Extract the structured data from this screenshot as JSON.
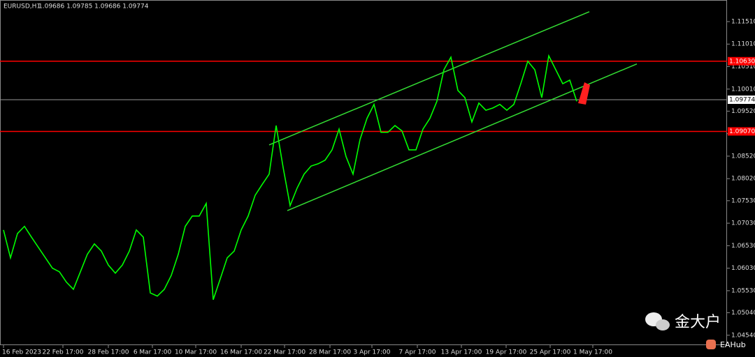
{
  "chart_data": {
    "type": "line",
    "title": "EURUSD,H1",
    "subtitle": "1.09686 1.09785 1.09686 1.09774",
    "color": "#00ff00",
    "values": [
      1.0688,
      1.0626,
      1.068,
      1.0696,
      1.0672,
      1.0649,
      1.0626,
      1.0603,
      1.0595,
      1.0572,
      1.0556,
      1.0595,
      1.0634,
      1.0657,
      1.0641,
      1.061,
      1.0592,
      1.061,
      1.0641,
      1.0688,
      1.0672,
      1.0548,
      1.0541,
      1.0556,
      1.0587,
      1.0634,
      1.0696,
      1.0719,
      1.0719,
      1.0747,
      1.0533,
      1.0579,
      1.0626,
      1.0641,
      1.0688,
      1.0719,
      1.0765,
      1.0789,
      1.0812,
      1.092,
      1.0827,
      1.0742,
      1.0781,
      1.0812,
      1.083,
      1.0835,
      1.0843,
      1.0866,
      1.0912,
      1.0851,
      1.0812,
      1.0889,
      1.0936,
      1.0967,
      1.0905,
      1.0905,
      1.092,
      1.0908,
      1.0866,
      1.0866,
      1.0912,
      1.0936,
      1.0974,
      1.1044,
      1.1072,
      1.0998,
      1.0982,
      1.0928,
      1.097,
      1.0954,
      1.0959,
      1.0967,
      1.0954,
      1.0967,
      1.1013,
      1.1063,
      1.1044,
      1.0982,
      1.1075,
      1.1044,
      1.1013,
      1.1021,
      1.0974
    ],
    "xlim": [
      0,
      103
    ],
    "ylim": [
      1.0432,
      1.1199
    ],
    "xticks": [
      {
        "value": 0,
        "label": "16 Feb 2023"
      },
      {
        "value": 8.5,
        "label": "22 Feb 17:00"
      },
      {
        "value": 15,
        "label": "28 Feb 17:00"
      },
      {
        "value": 21.3,
        "label": "6 Mar 17:00"
      },
      {
        "value": 27.5,
        "label": "10 Mar 17:00"
      },
      {
        "value": 34,
        "label": "16 Mar 17:00"
      },
      {
        "value": 40.2,
        "label": "22 Mar 17:00"
      },
      {
        "value": 46.7,
        "label": "28 Mar 17:00"
      },
      {
        "value": 52.7,
        "label": "3 Apr 17:00"
      },
      {
        "value": 59.2,
        "label": "7 Apr 17:00"
      },
      {
        "value": 65.5,
        "label": "13 Apr 17:00"
      },
      {
        "value": 71.9,
        "label": "19 Apr 17:00"
      },
      {
        "value": 78.2,
        "label": "25 Apr 17:00"
      },
      {
        "value": 84.3,
        "label": "1 May 17:00"
      }
    ],
    "yticks": [
      {
        "value": 1.1151,
        "label": "1.11510"
      },
      {
        "value": 1.1101,
        "label": "1.11010"
      },
      {
        "value": 1.1051,
        "label": "1.10510"
      },
      {
        "value": 1.1001,
        "label": "1.10010"
      },
      {
        "value": 1.0952,
        "label": "1.09520"
      },
      {
        "value": 1.0902,
        "label": "1.09020"
      },
      {
        "value": 1.0852,
        "label": "1.08520"
      },
      {
        "value": 1.0802,
        "label": "1.08020"
      },
      {
        "value": 1.0753,
        "label": "1.07530"
      },
      {
        "value": 1.0703,
        "label": "1.07030"
      },
      {
        "value": 1.0653,
        "label": "1.06530"
      },
      {
        "value": 1.0603,
        "label": "1.06030"
      },
      {
        "value": 1.0553,
        "label": "1.05530"
      },
      {
        "value": 1.0504,
        "label": "1.05040"
      },
      {
        "value": 1.0454,
        "label": "1.04540"
      }
    ],
    "levels": [
      {
        "value": 1.1063,
        "label": "1.10630",
        "color": "#ff0000"
      },
      {
        "value": 1.0907,
        "label": "1.09070",
        "color": "#ff0000"
      }
    ],
    "current_price": {
      "value": 1.09774,
      "label": "1.09774"
    },
    "trendlines": [
      {
        "x": [
          38,
          83.8
        ],
        "values": [
          1.0877,
          1.1173
        ]
      },
      {
        "x": [
          40.6,
          90.6
        ],
        "values": [
          1.0731,
          1.1057
        ]
      }
    ],
    "trendline_color": "#33dd33",
    "watermark": {
      "text": "金大户",
      "badge": "EAHub"
    }
  }
}
